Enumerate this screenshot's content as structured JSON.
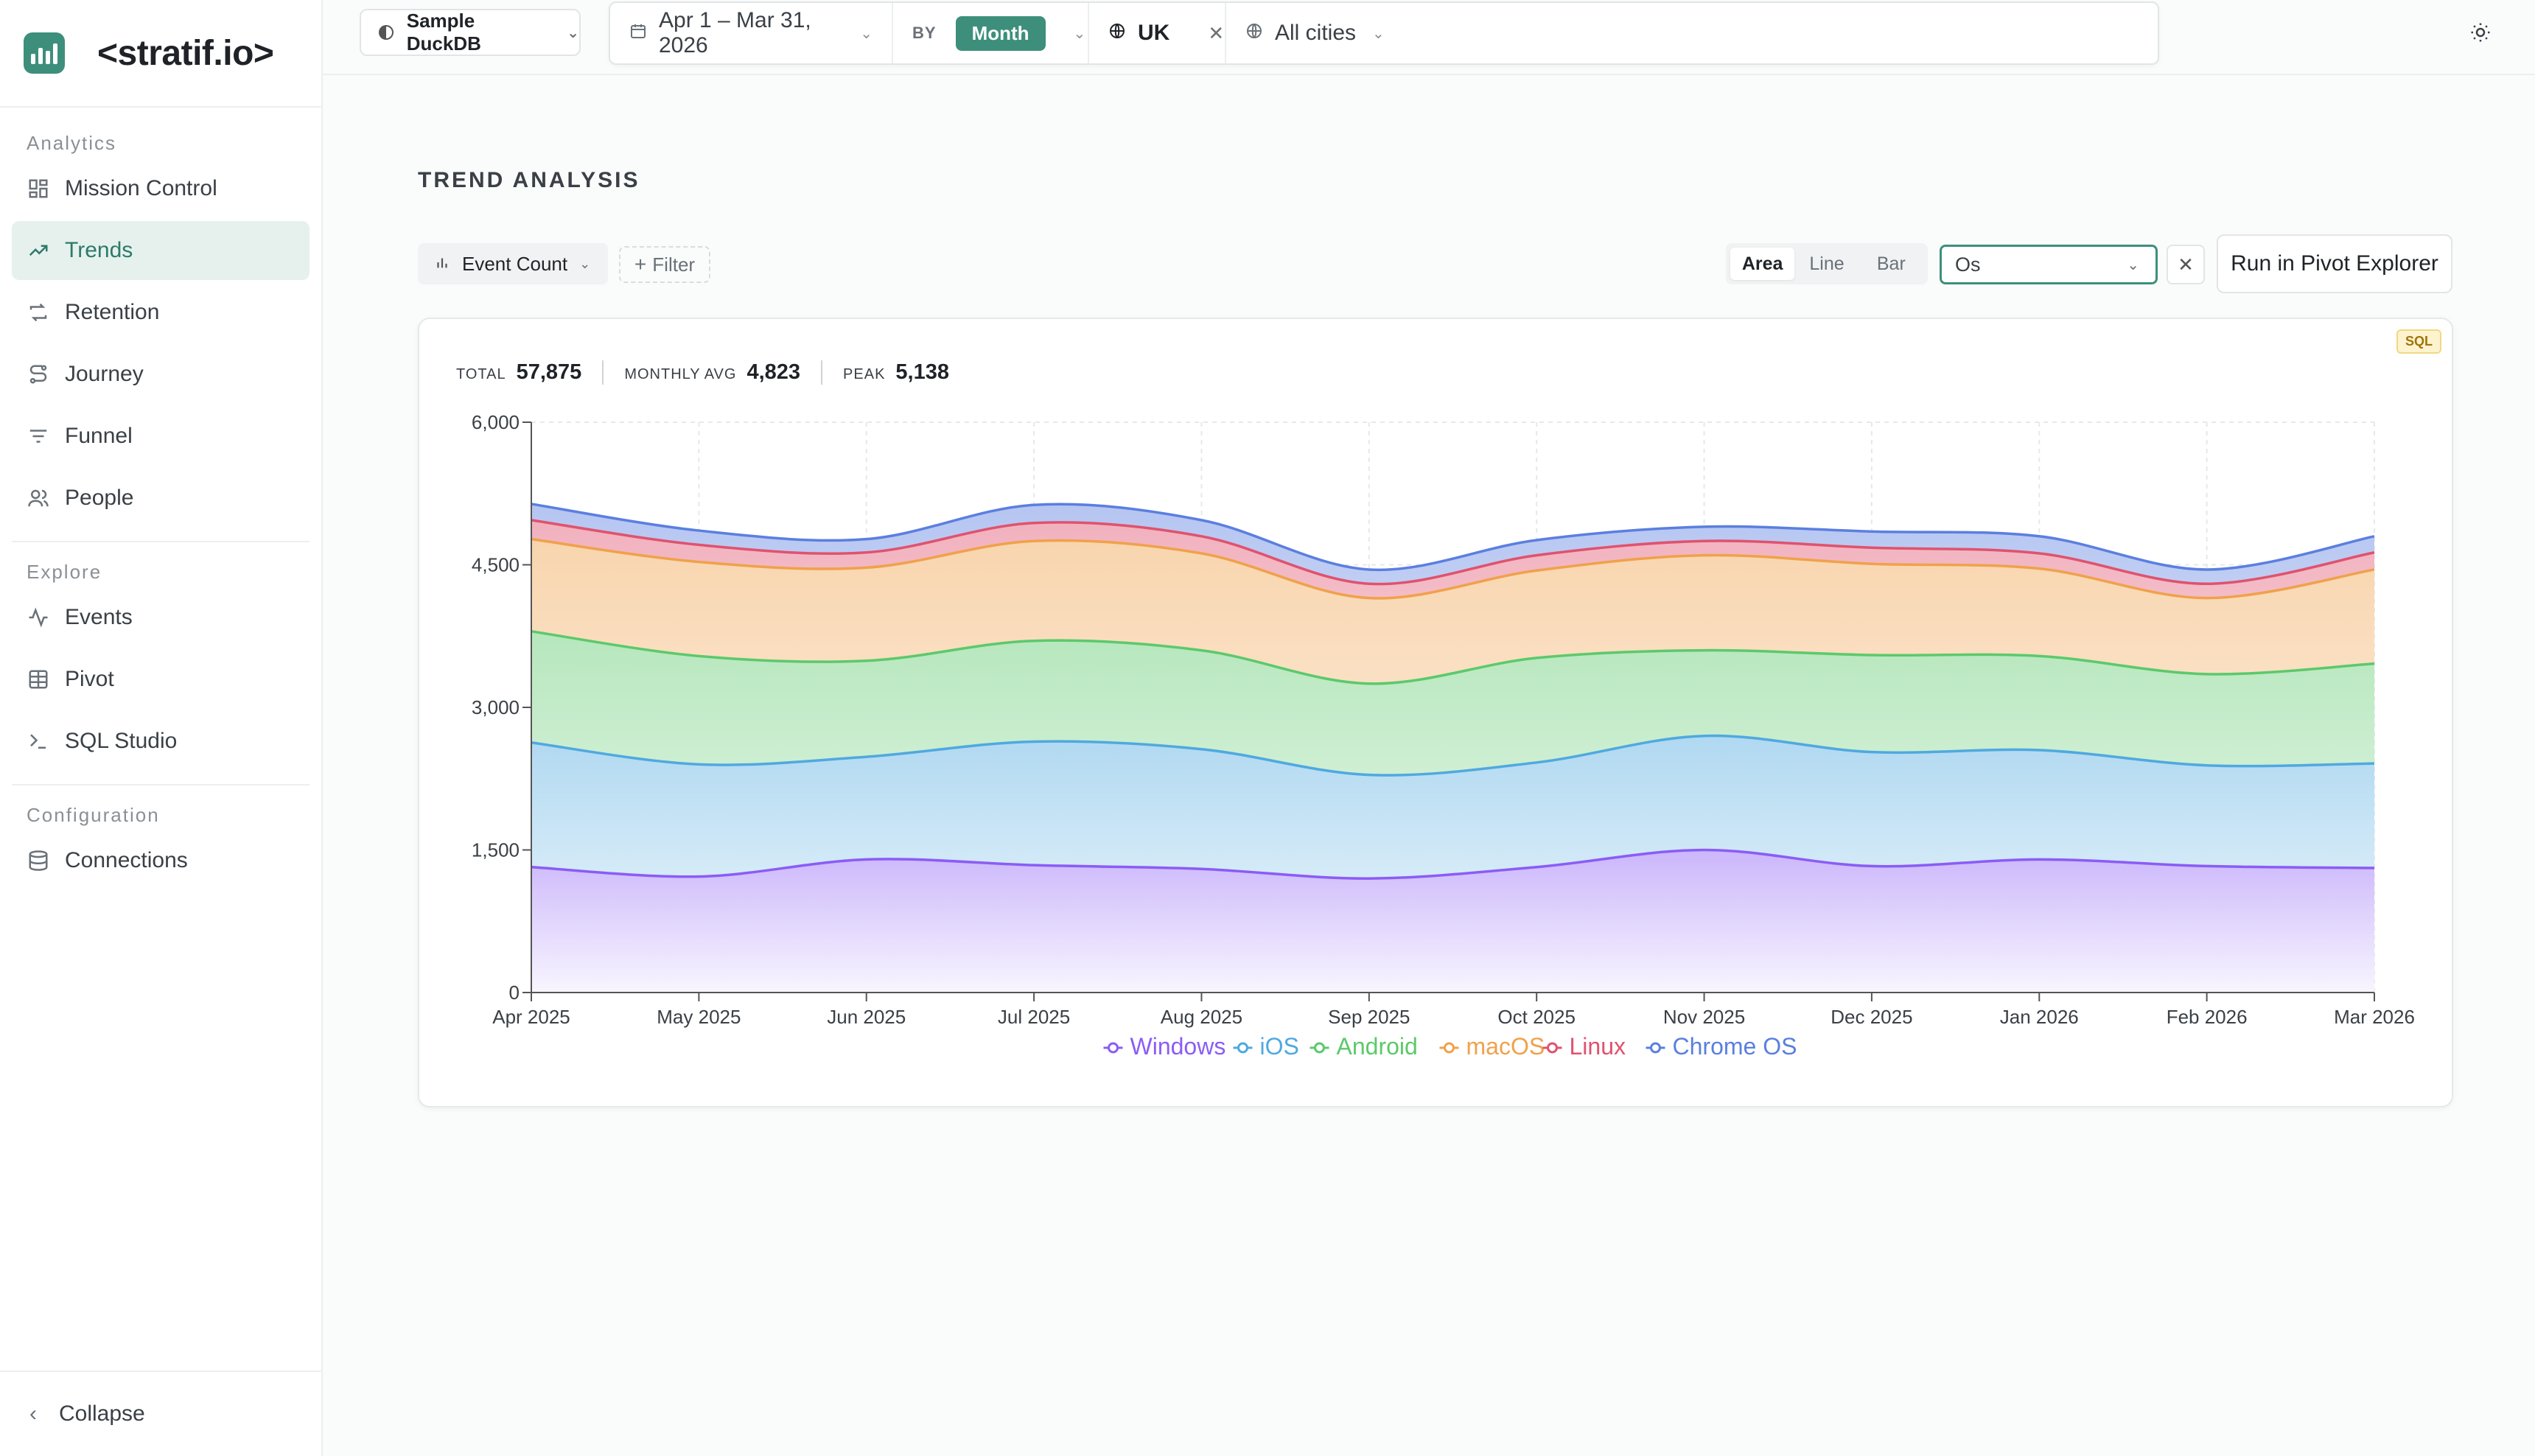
{
  "brand": {
    "name": "<stratif.io>"
  },
  "sidebar": {
    "sections": [
      {
        "heading": "Analytics",
        "items": [
          {
            "label": "Mission Control",
            "icon": "dashboard-icon"
          },
          {
            "label": "Trends",
            "icon": "trend-icon",
            "active": true
          },
          {
            "label": "Retention",
            "icon": "retention-icon"
          },
          {
            "label": "Journey",
            "icon": "journey-icon"
          },
          {
            "label": "Funnel",
            "icon": "funnel-icon"
          },
          {
            "label": "People",
            "icon": "people-icon"
          }
        ]
      },
      {
        "heading": "Explore",
        "items": [
          {
            "label": "Events",
            "icon": "activity-icon"
          },
          {
            "label": "Pivot",
            "icon": "table-icon"
          },
          {
            "label": "SQL Studio",
            "icon": "terminal-icon"
          }
        ]
      },
      {
        "heading": "Configuration",
        "items": [
          {
            "label": "Connections",
            "icon": "database-icon"
          }
        ]
      }
    ],
    "collapse_label": "Collapse"
  },
  "topbar": {
    "datasource": "Sample DuckDB",
    "date_range": "Apr 1 – Mar 31, 2026",
    "by_label": "BY",
    "granularity": "Month",
    "country": "UK",
    "city": "All cities"
  },
  "main": {
    "title": "TREND ANALYSIS",
    "metric": "Event Count",
    "filter_label": "Filter",
    "chart_modes": [
      "Area",
      "Line",
      "Bar"
    ],
    "active_mode": "Area",
    "breakdown_value": "Os",
    "pivot_button": "Run in Pivot Explorer",
    "sql_badge": "SQL",
    "stats": {
      "total_label": "TOTAL",
      "total": "57,875",
      "avg_label": "MONTHLY AVG",
      "avg": "4,823",
      "peak_label": "PEAK",
      "peak": "5,138"
    }
  },
  "chart_data": {
    "type": "area",
    "stacked": true,
    "categories": [
      "Apr 2025",
      "May 2025",
      "Jun 2025",
      "Jul 2025",
      "Aug 2025",
      "Sep 2025",
      "Oct 2025",
      "Nov 2025",
      "Dec 2025",
      "Jan 2026",
      "Feb 2026",
      "Mar 2026"
    ],
    "ylim": [
      0,
      6000
    ],
    "yticks": [
      "0",
      "1,500",
      "3,000",
      "4,500",
      "6,000"
    ],
    "ytick_values": [
      0,
      1500,
      3000,
      4500,
      6000
    ],
    "grid": true,
    "legend_position": "bottom",
    "series": [
      {
        "name": "Windows",
        "color": "#8b5cf6",
        "values": [
          1320,
          1220,
          1400,
          1340,
          1300,
          1200,
          1320,
          1500,
          1330,
          1400,
          1330,
          1310
        ]
      },
      {
        "name": "iOS",
        "color": "#4fa9e0",
        "values": [
          1310,
          1180,
          1080,
          1300,
          1260,
          1090,
          1100,
          1200,
          1200,
          1150,
          1060,
          1100
        ]
      },
      {
        "name": "Android",
        "color": "#5cc96b",
        "values": [
          1170,
          1140,
          1010,
          1060,
          1040,
          960,
          1100,
          900,
          1020,
          990,
          960,
          1050
        ]
      },
      {
        "name": "macOS",
        "color": "#f0a14a",
        "values": [
          970,
          990,
          980,
          1050,
          1020,
          900,
          920,
          1000,
          960,
          920,
          800,
          990
        ]
      },
      {
        "name": "Linux",
        "color": "#e0526e",
        "values": [
          200,
          180,
          160,
          190,
          180,
          150,
          160,
          150,
          170,
          160,
          150,
          180
        ]
      },
      {
        "name": "Chrome OS",
        "color": "#5b7fe0",
        "values": [
          170,
          150,
          140,
          190,
          170,
          150,
          160,
          150,
          170,
          180,
          150,
          170
        ]
      }
    ]
  }
}
